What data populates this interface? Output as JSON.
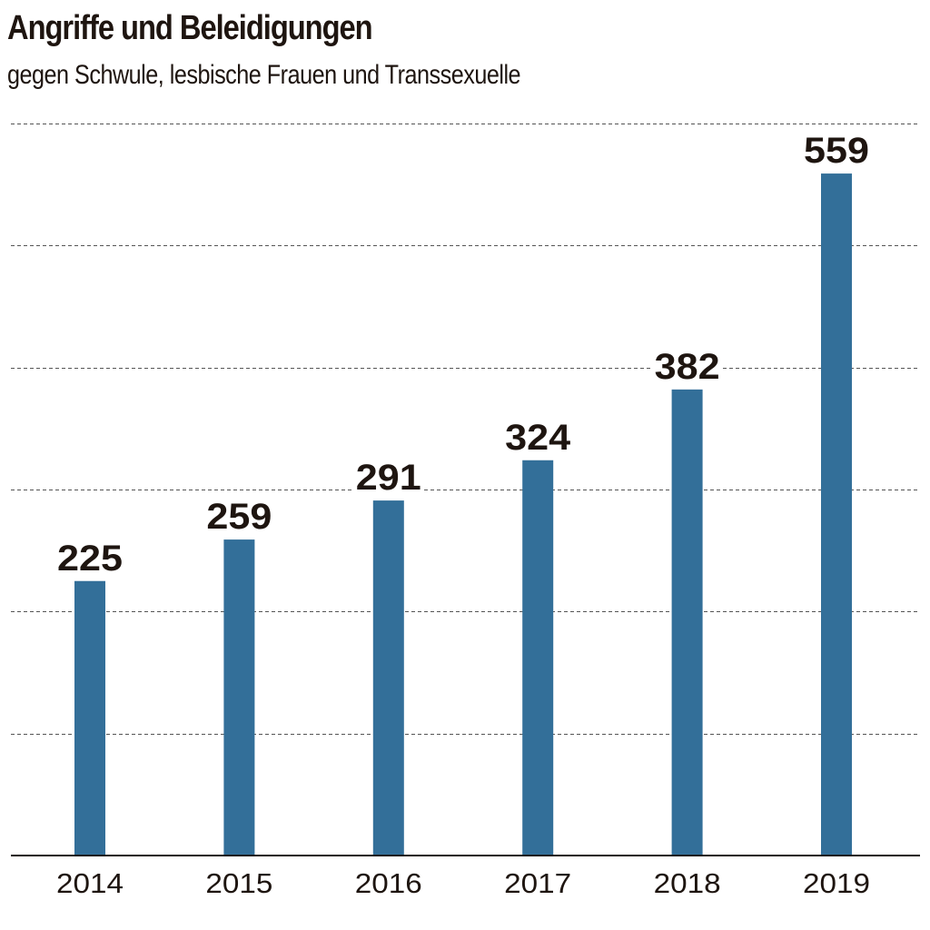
{
  "chart_data": {
    "type": "bar",
    "title": "Angriffe und Beleidigungen",
    "subtitle": "gegen Schwule, lesbische Frauen und Transsexuelle",
    "categories": [
      "2014",
      "2015",
      "2016",
      "2017",
      "2018",
      "2019"
    ],
    "values": [
      225,
      259,
      291,
      324,
      382,
      559
    ],
    "value_labels": [
      "225",
      "259",
      "291",
      "324",
      "382",
      "559"
    ],
    "xlabel": "",
    "ylabel": "",
    "ylim": [
      0,
      600
    ],
    "gridlines": [
      100,
      200,
      300,
      400,
      500,
      600
    ],
    "grid": true,
    "grid_style": "dashed",
    "bar_color": "#336f99",
    "legend": "none"
  }
}
